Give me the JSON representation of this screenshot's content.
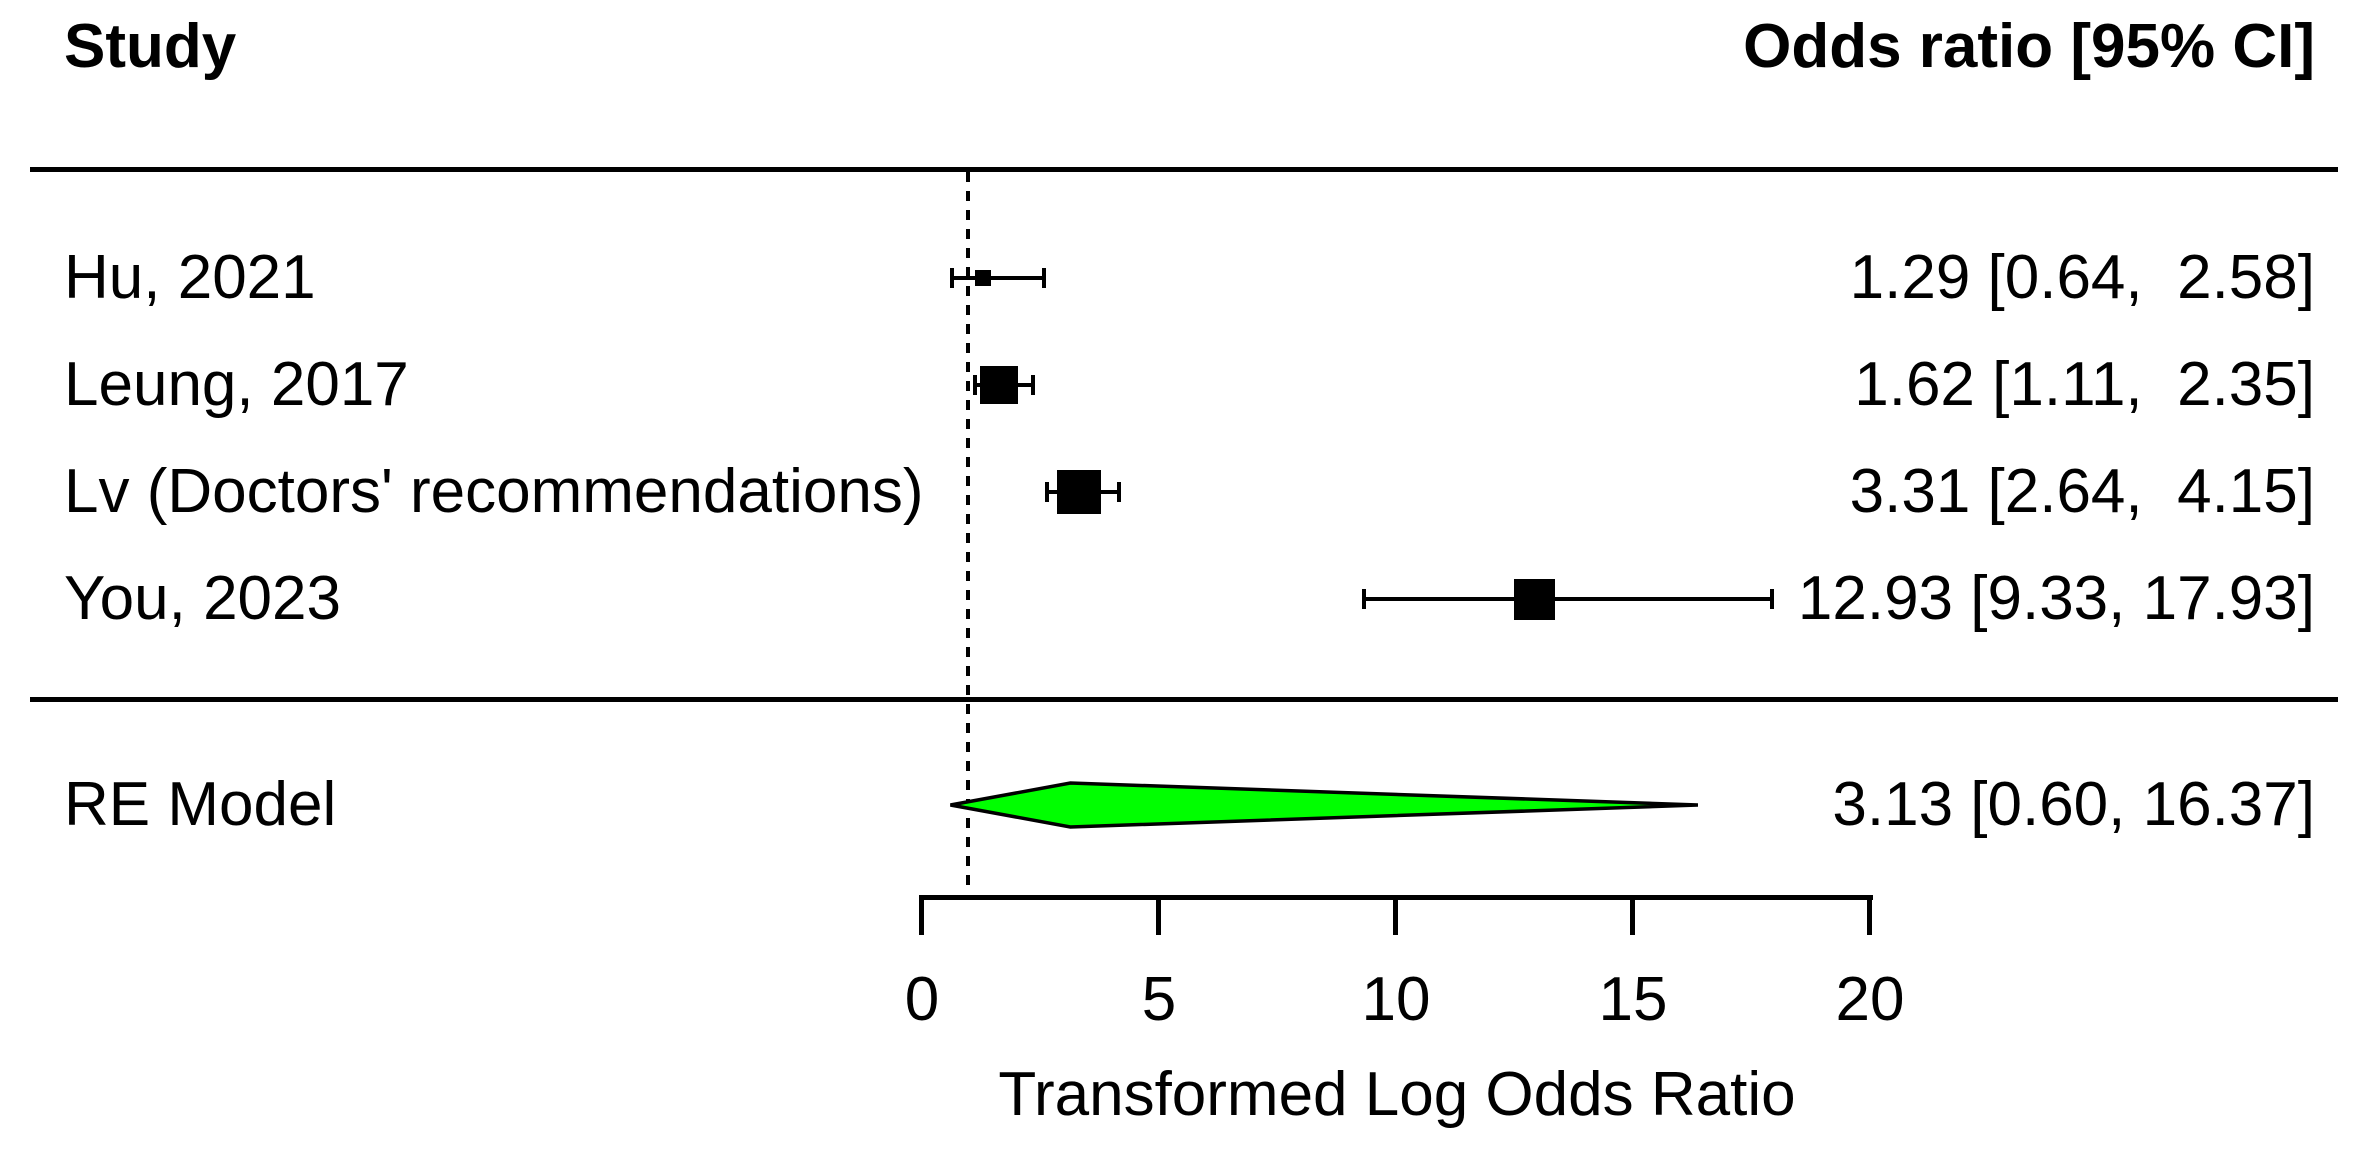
{
  "chart_data": {
    "type": "scatter",
    "subtype": "forest-plot",
    "title": "",
    "columns": {
      "left": "Study",
      "right": "Odds ratio [95% CI]"
    },
    "studies": [
      {
        "label": "Hu, 2021",
        "estimate": 1.29,
        "ci_lower": 0.64,
        "ci_upper": 2.58,
        "value_text": "1.29 [0.64,  2.58]",
        "marker_size_px": 16
      },
      {
        "label": "Leung, 2017",
        "estimate": 1.62,
        "ci_lower": 1.11,
        "ci_upper": 2.35,
        "value_text": "1.62 [1.11,  2.35]",
        "marker_size_px": 38
      },
      {
        "label": "Lv (Doctors' recommendations)",
        "estimate": 3.31,
        "ci_lower": 2.64,
        "ci_upper": 4.15,
        "value_text": "3.31 [2.64,  4.15]",
        "marker_size_px": 44
      },
      {
        "label": "You, 2023",
        "estimate": 12.93,
        "ci_lower": 9.33,
        "ci_upper": 17.93,
        "value_text": "12.93 [9.33, 17.93]",
        "marker_size_px": 41
      }
    ],
    "summary": {
      "label": "RE Model",
      "estimate": 3.13,
      "ci_lower": 0.6,
      "ci_upper": 16.37,
      "value_text": "3.13 [0.60, 16.37]"
    },
    "xlabel": "Transformed Log Odds Ratio",
    "xticks": [
      0,
      5,
      10,
      15,
      20
    ],
    "xlim": [
      0,
      20
    ],
    "reference_line_value": 1,
    "grid": false,
    "legend": "none",
    "colors": {
      "marker": "#000000",
      "text": "#000000",
      "background": "#ffffff",
      "diamond_fill": "#00FF00",
      "diamond_stroke": "#000000"
    }
  }
}
